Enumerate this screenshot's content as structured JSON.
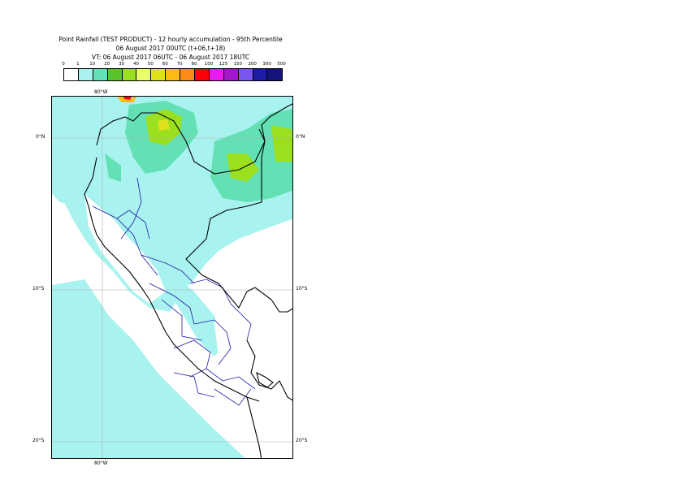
{
  "header": {
    "line1": "Point Rainfall (TEST PRODUCT) - 12 hourly accumulation - 95th Percentile",
    "line2": "06 August 2017 00UTC (t+06,t+18)",
    "line3": "VT: 06 August 2017 06UTC - 06 August 2017 18UTC"
  },
  "legend": {
    "ticks": [
      "0",
      "1",
      "10",
      "20",
      "30",
      "40",
      "50",
      "60",
      "70",
      "80",
      "100",
      "125",
      "150",
      "200",
      "300",
      "500"
    ],
    "colors": [
      "#ffffff",
      "#a8f3ef",
      "#63e0b4",
      "#5bc32a",
      "#9ae01f",
      "#e9ff68",
      "#dfe21b",
      "#fbbb13",
      "#fb8b17",
      "#fe0008",
      "#ee17ee",
      "#a218c6",
      "#7a56f0",
      "#1c1ca6",
      "#141479"
    ]
  },
  "map": {
    "lon_label_top": "80°W",
    "lon_label_bottom": "80°W",
    "lat_labels_left": [
      "0°N",
      "10°S",
      "20°S"
    ],
    "lat_labels_right": [
      "0°N",
      "10°S",
      "20°S"
    ],
    "colors": {
      "light_rain": "#a8f3ef",
      "moderate_rain": "#63e0b4",
      "heavy_rain": "#9ae01f",
      "very_heavy": "#dfe21b",
      "border": "#000000",
      "region_border": "#1c1ca6",
      "graticule": "#b0b0b0"
    }
  }
}
